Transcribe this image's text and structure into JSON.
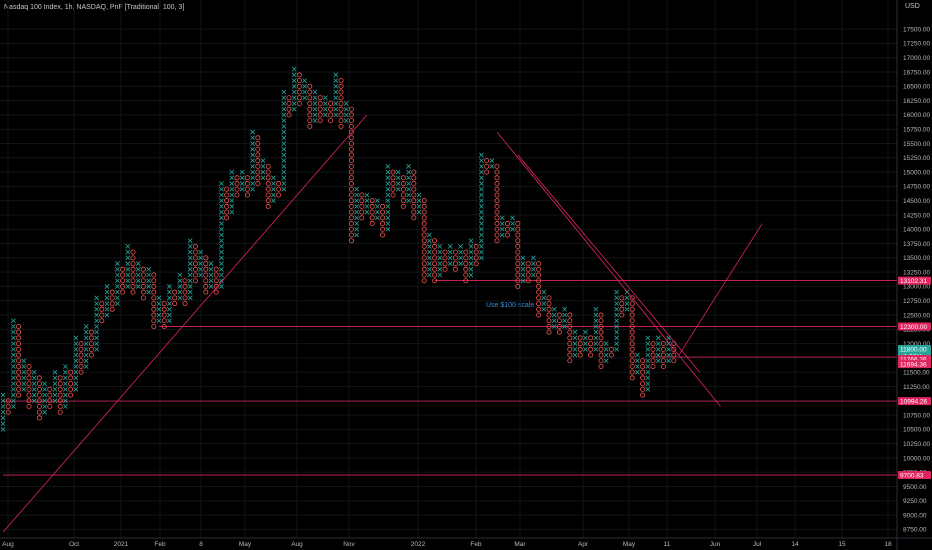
{
  "header": {
    "title": "Nasdaq 100 Index, 1h, NASDAQ, PnF [Traditional, 100, 3]",
    "currency": "USD"
  },
  "annotation": "Use $100 scale",
  "colors": {
    "background": "#000000",
    "x_box": "#26a69a",
    "o_box": "#ef5350",
    "line": "#e0245e",
    "badge_red": "#e0245e",
    "badge_teal": "#26a69a"
  },
  "chart_data": {
    "type": "point-and-figure",
    "title": "Nasdaq 100 Index, 1h, NASDAQ, PnF [Traditional, 100, 3]",
    "box_size": 100,
    "reversal": 3,
    "ylim": [
      8600,
      17800
    ],
    "y_ticks": [
      8750,
      9000,
      9250,
      9500,
      9750,
      10000,
      10250,
      10500,
      10750,
      11000,
      11250,
      11500,
      11750,
      12000,
      12250,
      12500,
      12750,
      13000,
      13250,
      13500,
      13750,
      14000,
      14250,
      14500,
      14750,
      15000,
      15250,
      15500,
      15750,
      16000,
      16250,
      16500,
      16750,
      17000,
      17250,
      17500
    ],
    "y_tick_labels": [
      "8750.00",
      "9000.00",
      "9250.00",
      "9500.00",
      "9750.00",
      "10000.00",
      "10250.00",
      "10500.00",
      "10750.00",
      "11000.00",
      "11250.00",
      "11500.00",
      "11750.00",
      "12000.00",
      "12250.00",
      "12500.00",
      "12750.00",
      "13000.00",
      "13250.00",
      "13500.00",
      "13750.00",
      "14000.00",
      "14250.00",
      "14500.00",
      "14750.00",
      "15000.00",
      "15250.00",
      "15500.00",
      "15750.00",
      "16000.00",
      "16250.00",
      "16500.00",
      "16750.00",
      "17000.00",
      "17250.00",
      "17500.00"
    ],
    "x_tick_labels": [
      "Aug",
      "Oct",
      "2021",
      "Feb",
      "8",
      "May",
      "Aug",
      "Nov",
      "2022",
      "Feb",
      "Mar",
      "Apr",
      "May",
      "11",
      "Jun",
      "Jul",
      "14",
      "15",
      "18"
    ],
    "columns": [
      {
        "type": "X",
        "low": 10500,
        "high": 11100
      },
      {
        "type": "O",
        "low": 10800,
        "high": 11000
      },
      {
        "type": "X",
        "low": 10900,
        "high": 12400
      },
      {
        "type": "O",
        "low": 11100,
        "high": 12300
      },
      {
        "type": "X",
        "low": 11200,
        "high": 11700
      },
      {
        "type": "O",
        "low": 10900,
        "high": 11600
      },
      {
        "type": "X",
        "low": 11000,
        "high": 11500
      },
      {
        "type": "O",
        "low": 10700,
        "high": 11400
      },
      {
        "type": "X",
        "low": 10800,
        "high": 11300
      },
      {
        "type": "O",
        "low": 10900,
        "high": 11200
      },
      {
        "type": "X",
        "low": 11000,
        "high": 11500
      },
      {
        "type": "O",
        "low": 10800,
        "high": 11400
      },
      {
        "type": "X",
        "low": 10900,
        "high": 11600
      },
      {
        "type": "O",
        "low": 11100,
        "high": 11500
      },
      {
        "type": "X",
        "low": 11200,
        "high": 12100
      },
      {
        "type": "O",
        "low": 11500,
        "high": 12000
      },
      {
        "type": "X",
        "low": 11600,
        "high": 12300
      },
      {
        "type": "O",
        "low": 11800,
        "high": 12200
      },
      {
        "type": "X",
        "low": 11900,
        "high": 12800
      },
      {
        "type": "O",
        "low": 12400,
        "high": 12700
      },
      {
        "type": "X",
        "low": 12500,
        "high": 13000
      },
      {
        "type": "O",
        "low": 12600,
        "high": 12900
      },
      {
        "type": "X",
        "low": 12700,
        "high": 13400
      },
      {
        "type": "O",
        "low": 12900,
        "high": 13300
      },
      {
        "type": "X",
        "low": 13000,
        "high": 13700
      },
      {
        "type": "O",
        "low": 12900,
        "high": 13600
      },
      {
        "type": "X",
        "low": 13000,
        "high": 13400
      },
      {
        "type": "O",
        "low": 12800,
        "high": 13300
      },
      {
        "type": "X",
        "low": 12900,
        "high": 13300
      },
      {
        "type": "O",
        "low": 12300,
        "high": 13200
      },
      {
        "type": "X",
        "low": 12400,
        "high": 12800
      },
      {
        "type": "O",
        "low": 12300,
        "high": 12700
      },
      {
        "type": "X",
        "low": 12400,
        "high": 13000
      },
      {
        "type": "O",
        "low": 12700,
        "high": 12900
      },
      {
        "type": "X",
        "low": 12800,
        "high": 13200
      },
      {
        "type": "O",
        "low": 12700,
        "high": 13100
      },
      {
        "type": "X",
        "low": 12800,
        "high": 13800
      },
      {
        "type": "O",
        "low": 13100,
        "high": 13700
      },
      {
        "type": "X",
        "low": 13200,
        "high": 13600
      },
      {
        "type": "O",
        "low": 12900,
        "high": 13500
      },
      {
        "type": "X",
        "low": 13000,
        "high": 13400
      },
      {
        "type": "O",
        "low": 12900,
        "high": 13300
      },
      {
        "type": "X",
        "low": 13000,
        "high": 14800
      },
      {
        "type": "O",
        "low": 14200,
        "high": 14700
      },
      {
        "type": "X",
        "low": 14300,
        "high": 15000
      },
      {
        "type": "O",
        "low": 14600,
        "high": 14900
      },
      {
        "type": "X",
        "low": 14700,
        "high": 15000
      },
      {
        "type": "O",
        "low": 14600,
        "high": 14900
      },
      {
        "type": "X",
        "low": 14700,
        "high": 15700
      },
      {
        "type": "O",
        "low": 14800,
        "high": 15600
      },
      {
        "type": "X",
        "low": 14900,
        "high": 15200
      },
      {
        "type": "O",
        "low": 14400,
        "high": 15100
      },
      {
        "type": "X",
        "low": 14500,
        "high": 14900
      },
      {
        "type": "O",
        "low": 14600,
        "high": 14800
      },
      {
        "type": "X",
        "low": 14700,
        "high": 16400
      },
      {
        "type": "O",
        "low": 16000,
        "high": 16300
      },
      {
        "type": "X",
        "low": 16100,
        "high": 16800
      },
      {
        "type": "O",
        "low": 16200,
        "high": 16700
      },
      {
        "type": "X",
        "low": 16300,
        "high": 16600
      },
      {
        "type": "O",
        "low": 15800,
        "high": 16500
      },
      {
        "type": "X",
        "low": 15900,
        "high": 16400
      },
      {
        "type": "O",
        "low": 15900,
        "high": 16300
      },
      {
        "type": "X",
        "low": 16000,
        "high": 16300
      },
      {
        "type": "O",
        "low": 15900,
        "high": 16200
      },
      {
        "type": "X",
        "low": 16000,
        "high": 16700
      },
      {
        "type": "O",
        "low": 15800,
        "high": 16600
      },
      {
        "type": "X",
        "low": 15900,
        "high": 16200
      },
      {
        "type": "O",
        "low": 13800,
        "high": 16100
      },
      {
        "type": "X",
        "low": 13900,
        "high": 14700
      },
      {
        "type": "O",
        "low": 14200,
        "high": 14600
      },
      {
        "type": "X",
        "low": 14300,
        "high": 14600
      },
      {
        "type": "O",
        "low": 14100,
        "high": 14500
      },
      {
        "type": "X",
        "low": 14200,
        "high": 14500
      },
      {
        "type": "O",
        "low": 13900,
        "high": 14400
      },
      {
        "type": "X",
        "low": 14000,
        "high": 15100
      },
      {
        "type": "O",
        "low": 14600,
        "high": 15000
      },
      {
        "type": "X",
        "low": 14700,
        "high": 15000
      },
      {
        "type": "O",
        "low": 14400,
        "high": 14900
      },
      {
        "type": "X",
        "low": 14500,
        "high": 15100
      },
      {
        "type": "O",
        "low": 14200,
        "high": 15000
      },
      {
        "type": "X",
        "low": 14300,
        "high": 14600
      },
      {
        "type": "O",
        "low": 13100,
        "high": 14500
      },
      {
        "type": "X",
        "low": 13200,
        "high": 13900
      },
      {
        "type": "O",
        "low": 13100,
        "high": 13800
      },
      {
        "type": "X",
        "low": 13200,
        "high": 13700
      },
      {
        "type": "O",
        "low": 13300,
        "high": 13600
      },
      {
        "type": "X",
        "low": 13400,
        "high": 13700
      },
      {
        "type": "O",
        "low": 13300,
        "high": 13600
      },
      {
        "type": "X",
        "low": 13400,
        "high": 13700
      },
      {
        "type": "O",
        "low": 13100,
        "high": 13600
      },
      {
        "type": "X",
        "low": 13200,
        "high": 13800
      },
      {
        "type": "O",
        "low": 13400,
        "high": 13700
      },
      {
        "type": "X",
        "low": 13500,
        "high": 15300
      },
      {
        "type": "O",
        "low": 15000,
        "high": 15200
      },
      {
        "type": "X",
        "low": 15100,
        "high": 15200
      },
      {
        "type": "O",
        "low": 13800,
        "high": 15100
      },
      {
        "type": "X",
        "low": 13900,
        "high": 14200
      },
      {
        "type": "O",
        "low": 13900,
        "high": 14100
      },
      {
        "type": "X",
        "low": 14000,
        "high": 14200
      },
      {
        "type": "O",
        "low": 13000,
        "high": 14100
      },
      {
        "type": "X",
        "low": 13100,
        "high": 13500
      },
      {
        "type": "O",
        "low": 13100,
        "high": 13400
      },
      {
        "type": "X",
        "low": 13200,
        "high": 13500
      },
      {
        "type": "O",
        "low": 12500,
        "high": 13400
      },
      {
        "type": "X",
        "low": 12600,
        "high": 12900
      },
      {
        "type": "O",
        "low": 12200,
        "high": 12800
      },
      {
        "type": "X",
        "low": 12300,
        "high": 12600
      },
      {
        "type": "O",
        "low": 12200,
        "high": 12500
      },
      {
        "type": "X",
        "low": 12300,
        "high": 12600
      },
      {
        "type": "O",
        "low": 11700,
        "high": 12500
      },
      {
        "type": "X",
        "low": 11800,
        "high": 12200
      },
      {
        "type": "O",
        "low": 11800,
        "high": 12100
      },
      {
        "type": "X",
        "low": 11900,
        "high": 12200
      },
      {
        "type": "O",
        "low": 11800,
        "high": 12100
      },
      {
        "type": "X",
        "low": 11900,
        "high": 12600
      },
      {
        "type": "O",
        "low": 11600,
        "high": 12500
      },
      {
        "type": "X",
        "low": 11700,
        "high": 12000
      },
      {
        "type": "O",
        "low": 11800,
        "high": 11900
      },
      {
        "type": "X",
        "low": 11900,
        "high": 12900
      },
      {
        "type": "O",
        "low": 12500,
        "high": 12800
      },
      {
        "type": "X",
        "low": 12600,
        "high": 12900
      },
      {
        "type": "O",
        "low": 11400,
        "high": 12800
      },
      {
        "type": "X",
        "low": 11500,
        "high": 11800
      },
      {
        "type": "O",
        "low": 11100,
        "high": 11700
      },
      {
        "type": "X",
        "low": 11200,
        "high": 12100
      },
      {
        "type": "O",
        "low": 11600,
        "high": 12000
      },
      {
        "type": "X",
        "low": 11700,
        "high": 12100
      },
      {
        "type": "O",
        "low": 11600,
        "high": 12000
      },
      {
        "type": "X",
        "low": 11700,
        "high": 12100
      },
      {
        "type": "O",
        "low": 11700,
        "high": 12000
      }
    ],
    "trendlines": [
      {
        "from": {
          "col": 0,
          "price": 8700
        },
        "to": {
          "col": 70,
          "price": 16000
        }
      },
      {
        "from": {
          "col": 95,
          "price": 15700
        },
        "to": {
          "col": 138,
          "price": 10900
        }
      },
      {
        "from": {
          "col": 99,
          "price": 15300
        },
        "to": {
          "col": 134,
          "price": 11500
        }
      },
      {
        "from": {
          "col": 130,
          "price": 11800
        },
        "to": {
          "col": 146,
          "price": 14100
        }
      }
    ],
    "horizontal_levels": [
      {
        "price": 12300,
        "from_col": 30,
        "label": "12300.00",
        "color": "#e0245e"
      },
      {
        "price": 13102.31,
        "from_col": 83,
        "label": "13102.31",
        "color": "#e0245e"
      },
      {
        "price": 10994.26,
        "from_col": 0,
        "label": "10994.26",
        "color": "#e0245e"
      },
      {
        "price": 9700.83,
        "from_col": 0,
        "label": "9700.83",
        "color": "#e0245e"
      },
      {
        "price": 11766.26,
        "from_col": 125,
        "label": "11766.26",
        "color": "#e0245e"
      }
    ],
    "price_badges": [
      {
        "price": 11800,
        "label": "11800.00",
        "sub": "+1.36%",
        "color": "#26a69a"
      },
      {
        "price": 11766.26,
        "label": "11766.26",
        "color": "#e0245e"
      },
      {
        "price": 11694.36,
        "label": "11694.36",
        "color": "#e0245e"
      }
    ]
  }
}
